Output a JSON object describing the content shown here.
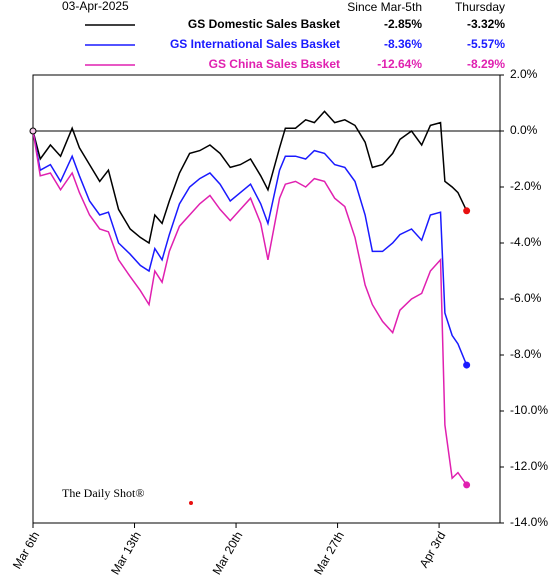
{
  "chart_data": {
    "type": "line",
    "date": "03-Apr-2025",
    "table_headers": [
      "Since Mar-5th",
      "Thursday"
    ],
    "watermark": "The Daily Shot®",
    "xlim": [
      0,
      32.2
    ],
    "ylim": [
      -14,
      2
    ],
    "xticks": [
      {
        "value": 0,
        "label": "Mar 6th"
      },
      {
        "value": 7,
        "label": "Mar 13th"
      },
      {
        "value": 14,
        "label": "Mar 20th"
      },
      {
        "value": 21,
        "label": "Mar 27th"
      },
      {
        "value": 28,
        "label": "Apr 3rd"
      }
    ],
    "yticks": [
      {
        "value": 2,
        "label": "2.0%"
      },
      {
        "value": 0,
        "label": "0.0%"
      },
      {
        "value": -2,
        "label": "-2.0%"
      },
      {
        "value": -4,
        "label": "-4.0%"
      },
      {
        "value": -6,
        "label": "-6.0%"
      },
      {
        "value": -8,
        "label": "-8.0%"
      },
      {
        "value": -10,
        "label": "-10.0%"
      },
      {
        "value": -12,
        "label": "-12.0%"
      },
      {
        "value": -14,
        "label": "-14.0%"
      }
    ],
    "x": [
      0,
      0.5,
      1.2,
      1.9,
      2.7,
      3.2,
      3.9,
      4.6,
      5.2,
      5.9,
      6.7,
      7.4,
      8.0,
      8.4,
      8.9,
      9.4,
      10.1,
      10.8,
      11.5,
      12.2,
      12.9,
      13.6,
      14.3,
      15.0,
      15.7,
      16.2,
      17.0,
      17.4,
      18.1,
      18.8,
      19.4,
      20.1,
      20.8,
      21.5,
      22.2,
      22.9,
      23.4,
      24.1,
      24.8,
      25.3,
      26.1,
      26.8,
      27.4,
      28.1,
      28.4,
      28.9,
      29.3,
      29.9
    ],
    "series": [
      {
        "name": "GS Domestic Sales Basket",
        "color": "#000000",
        "end_marker_color": "#e81010",
        "since_label": "-2.85%",
        "thursday_label": "-3.32%",
        "values": [
          0,
          -1.0,
          -0.5,
          -0.9,
          0.1,
          -0.6,
          -1.2,
          -1.8,
          -1.4,
          -2.8,
          -3.5,
          -3.8,
          -4.0,
          -3.0,
          -3.3,
          -2.5,
          -1.5,
          -0.8,
          -0.7,
          -0.5,
          -0.8,
          -1.3,
          -1.2,
          -1.0,
          -1.6,
          -2.1,
          -0.6,
          0.1,
          0.1,
          0.4,
          0.3,
          0.7,
          0.3,
          0.4,
          0.2,
          -0.4,
          -1.3,
          -1.2,
          -0.8,
          -0.3,
          0.0,
          -0.5,
          0.2,
          0.3,
          -1.8,
          -2.0,
          -2.2,
          -2.85
        ]
      },
      {
        "name": "GS International Sales Basket",
        "color": "#1a1aff",
        "end_marker_color": "#1a1aff",
        "since_label": "-8.36%",
        "thursday_label": "-5.57%",
        "values": [
          0,
          -1.4,
          -1.2,
          -1.8,
          -0.9,
          -1.6,
          -2.5,
          -3.0,
          -2.9,
          -4.0,
          -4.4,
          -4.8,
          -5.0,
          -4.2,
          -4.6,
          -3.7,
          -2.6,
          -2.0,
          -1.7,
          -1.5,
          -1.9,
          -2.5,
          -2.2,
          -1.9,
          -2.6,
          -3.3,
          -1.4,
          -0.9,
          -0.9,
          -1.0,
          -0.7,
          -0.8,
          -1.2,
          -1.3,
          -1.8,
          -3.0,
          -4.3,
          -4.3,
          -4.0,
          -3.7,
          -3.5,
          -3.9,
          -3.0,
          -2.9,
          -6.5,
          -7.3,
          -7.6,
          -8.36
        ]
      },
      {
        "name": "GS China Sales Basket",
        "color": "#e020b0",
        "end_marker_color": "#e020b0",
        "since_label": "-12.64%",
        "thursday_label": "-8.29%",
        "values": [
          0,
          -1.6,
          -1.5,
          -2.1,
          -1.5,
          -2.2,
          -3.0,
          -3.5,
          -3.6,
          -4.6,
          -5.2,
          -5.7,
          -6.2,
          -5.0,
          -5.4,
          -4.3,
          -3.4,
          -3.0,
          -2.6,
          -2.3,
          -2.8,
          -3.2,
          -2.8,
          -2.4,
          -3.3,
          -4.6,
          -2.4,
          -1.9,
          -1.8,
          -2.0,
          -1.7,
          -1.8,
          -2.4,
          -2.7,
          -3.8,
          -5.5,
          -6.2,
          -6.8,
          -7.2,
          -6.4,
          -6.0,
          -5.8,
          -5.0,
          -4.6,
          -10.5,
          -12.4,
          -12.2,
          -12.64
        ]
      }
    ]
  }
}
